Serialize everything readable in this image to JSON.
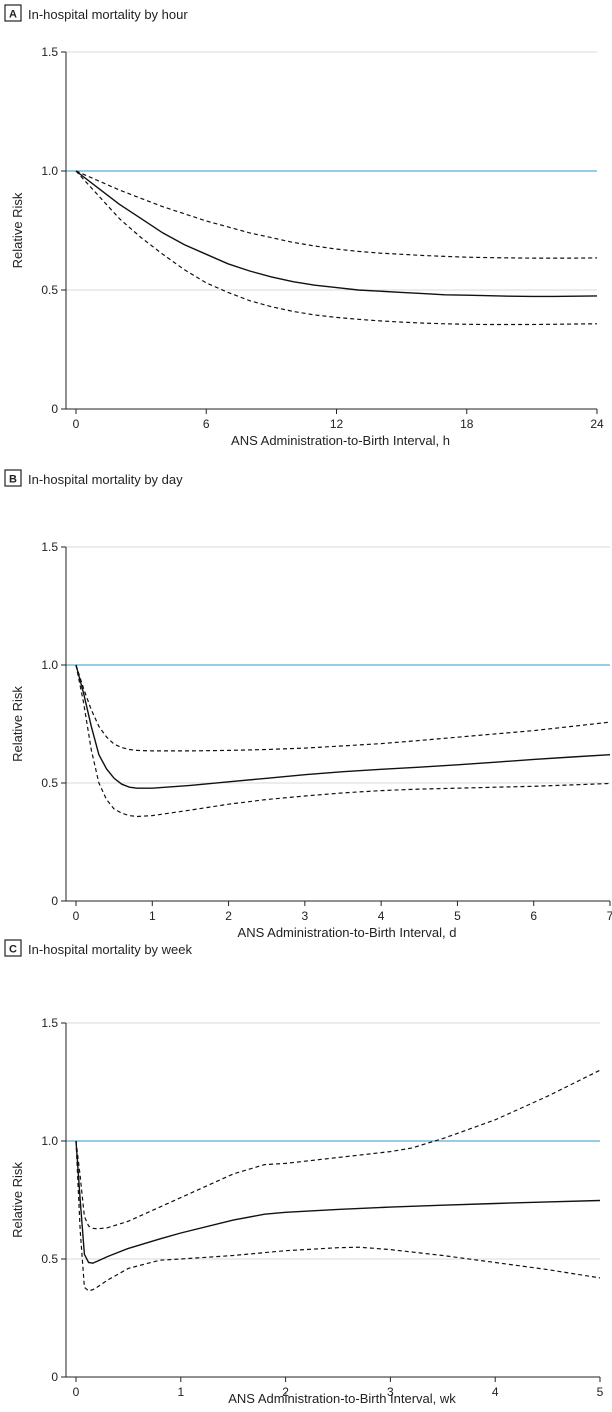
{
  "chart_data": [
    {
      "type": "line",
      "panel_letter": "A",
      "title": "In-hospital mortality by hour",
      "xlabel": "ANS Administration-to-Birth Interval, h",
      "ylabel": "Relative Risk",
      "xlim": [
        0,
        24
      ],
      "ylim": [
        0,
        1.5
      ],
      "xticks": [
        0,
        6,
        12,
        18,
        24
      ],
      "yticks": [
        0,
        0.5,
        1.0,
        1.5
      ],
      "ytick_labels": [
        "0",
        "0.5",
        "1.0",
        "1.5"
      ],
      "grid": "horizontal",
      "reference_line": {
        "y": 1.0,
        "color": "#5aaed6"
      },
      "series": [
        {
          "role": "estimate",
          "style": "solid",
          "x": [
            0,
            1,
            2,
            3,
            4,
            5,
            6,
            7,
            8,
            9,
            10,
            11,
            12,
            13,
            14,
            15,
            16,
            17,
            18,
            19,
            20,
            21,
            22,
            23,
            24
          ],
          "y": [
            1.0,
            0.93,
            0.86,
            0.8,
            0.74,
            0.69,
            0.65,
            0.61,
            0.58,
            0.555,
            0.535,
            0.52,
            0.51,
            0.5,
            0.495,
            0.49,
            0.485,
            0.48,
            0.478,
            0.476,
            0.474,
            0.473,
            0.473,
            0.474,
            0.475
          ]
        },
        {
          "role": "upper-ci",
          "style": "dashed",
          "x": [
            0,
            1,
            2,
            3,
            4,
            5,
            6,
            7,
            8,
            9,
            10,
            11,
            12,
            13,
            14,
            15,
            16,
            17,
            18,
            19,
            20,
            21,
            22,
            23,
            24
          ],
          "y": [
            1.0,
            0.96,
            0.92,
            0.885,
            0.85,
            0.82,
            0.79,
            0.765,
            0.74,
            0.72,
            0.7,
            0.685,
            0.672,
            0.662,
            0.655,
            0.65,
            0.645,
            0.641,
            0.638,
            0.636,
            0.635,
            0.634,
            0.634,
            0.634,
            0.635
          ]
        },
        {
          "role": "lower-ci",
          "style": "dashed",
          "x": [
            0,
            1,
            2,
            3,
            4,
            5,
            6,
            7,
            8,
            9,
            10,
            11,
            12,
            13,
            14,
            15,
            16,
            17,
            18,
            19,
            20,
            21,
            22,
            23,
            24
          ],
          "y": [
            1.0,
            0.9,
            0.8,
            0.72,
            0.65,
            0.585,
            0.53,
            0.49,
            0.455,
            0.43,
            0.41,
            0.395,
            0.385,
            0.377,
            0.37,
            0.365,
            0.361,
            0.358,
            0.356,
            0.355,
            0.355,
            0.355,
            0.356,
            0.357,
            0.358
          ]
        }
      ]
    },
    {
      "type": "line",
      "panel_letter": "B",
      "title": "In-hospital mortality by day",
      "xlabel": "ANS Administration-to-Birth Interval, d",
      "ylabel": "Relative Risk",
      "xlim": [
        0,
        7
      ],
      "ylim": [
        0,
        1.5
      ],
      "xticks": [
        0,
        1,
        2,
        3,
        4,
        5,
        6,
        7
      ],
      "yticks": [
        0,
        0.5,
        1.0,
        1.5
      ],
      "ytick_labels": [
        "0",
        "0.5",
        "1.0",
        "1.5"
      ],
      "grid": "horizontal",
      "reference_line": {
        "y": 1.0,
        "color": "#5aaed6"
      },
      "series": [
        {
          "role": "estimate",
          "style": "solid",
          "x": [
            0,
            0.1,
            0.2,
            0.3,
            0.4,
            0.5,
            0.6,
            0.7,
            0.8,
            1.0,
            1.5,
            2,
            2.5,
            3,
            3.5,
            4,
            4.5,
            5,
            5.5,
            6,
            6.5,
            7
          ],
          "y": [
            1.0,
            0.88,
            0.74,
            0.62,
            0.56,
            0.52,
            0.495,
            0.482,
            0.478,
            0.478,
            0.49,
            0.505,
            0.52,
            0.535,
            0.548,
            0.558,
            0.567,
            0.577,
            0.588,
            0.6,
            0.61,
            0.62
          ]
        },
        {
          "role": "upper-ci",
          "style": "dashed",
          "x": [
            0,
            0.1,
            0.2,
            0.3,
            0.4,
            0.5,
            0.6,
            0.7,
            0.8,
            1.0,
            1.5,
            2,
            2.5,
            3,
            3.5,
            4,
            4.5,
            5,
            5.5,
            6,
            6.5,
            7
          ],
          "y": [
            1.0,
            0.9,
            0.81,
            0.74,
            0.695,
            0.665,
            0.65,
            0.642,
            0.638,
            0.636,
            0.636,
            0.638,
            0.642,
            0.648,
            0.657,
            0.667,
            0.68,
            0.694,
            0.708,
            0.722,
            0.74,
            0.758
          ]
        },
        {
          "role": "lower-ci",
          "style": "dashed",
          "x": [
            0,
            0.1,
            0.2,
            0.3,
            0.4,
            0.5,
            0.6,
            0.7,
            0.8,
            1.0,
            1.5,
            2,
            2.5,
            3,
            3.5,
            4,
            4.5,
            5,
            5.5,
            6,
            6.5,
            7
          ],
          "y": [
            1.0,
            0.84,
            0.64,
            0.5,
            0.43,
            0.39,
            0.372,
            0.362,
            0.358,
            0.362,
            0.385,
            0.41,
            0.43,
            0.445,
            0.458,
            0.468,
            0.474,
            0.478,
            0.482,
            0.486,
            0.492,
            0.498
          ]
        }
      ]
    },
    {
      "type": "line",
      "panel_letter": "C",
      "title": "In-hospital mortality by week",
      "xlabel": "ANS Administration-to-Birth Interval, wk",
      "ylabel": "Relative Risk",
      "xlim": [
        0,
        5
      ],
      "ylim": [
        0,
        1.5
      ],
      "xticks": [
        0,
        1,
        2,
        3,
        4,
        5
      ],
      "yticks": [
        0,
        0.5,
        1.0,
        1.5
      ],
      "ytick_labels": [
        "0",
        "0.5",
        "1.0",
        "1.5"
      ],
      "grid": "horizontal",
      "reference_line": {
        "y": 1.0,
        "color": "#5aaed6"
      },
      "series": [
        {
          "role": "estimate",
          "style": "solid",
          "x": [
            0,
            0.04,
            0.08,
            0.12,
            0.16,
            0.2,
            0.3,
            0.5,
            0.8,
            1.0,
            1.5,
            1.8,
            2.0,
            2.5,
            3,
            3.5,
            4,
            4.5,
            5
          ],
          "y": [
            1.0,
            0.75,
            0.52,
            0.485,
            0.482,
            0.49,
            0.51,
            0.545,
            0.585,
            0.61,
            0.665,
            0.69,
            0.698,
            0.71,
            0.72,
            0.728,
            0.735,
            0.742,
            0.748
          ]
        },
        {
          "role": "upper-ci",
          "style": "dashed",
          "x": [
            0,
            0.04,
            0.08,
            0.12,
            0.16,
            0.2,
            0.3,
            0.5,
            0.8,
            1.0,
            1.5,
            1.8,
            2.0,
            2.5,
            3,
            3.2,
            3.5,
            4,
            4.5,
            5
          ],
          "y": [
            1.0,
            0.85,
            0.68,
            0.64,
            0.63,
            0.628,
            0.632,
            0.66,
            0.72,
            0.76,
            0.86,
            0.9,
            0.905,
            0.93,
            0.955,
            0.97,
            1.01,
            1.09,
            1.19,
            1.3
          ]
        },
        {
          "role": "lower-ci",
          "style": "dashed",
          "x": [
            0,
            0.04,
            0.08,
            0.12,
            0.16,
            0.2,
            0.3,
            0.5,
            0.8,
            1.0,
            1.5,
            2.0,
            2.5,
            2.7,
            3,
            3.5,
            4,
            4.5,
            5
          ],
          "y": [
            1.0,
            0.62,
            0.38,
            0.365,
            0.37,
            0.38,
            0.41,
            0.46,
            0.495,
            0.5,
            0.515,
            0.535,
            0.548,
            0.55,
            0.54,
            0.515,
            0.485,
            0.455,
            0.42
          ]
        }
      ]
    }
  ]
}
